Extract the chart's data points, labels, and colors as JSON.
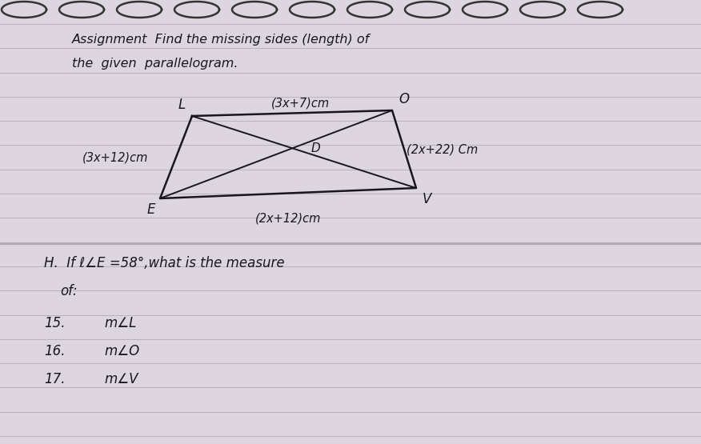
{
  "bg_color": "#ddd5e0",
  "line_color": "#b8b0be",
  "text_color": "#1a1520",
  "title_line1": "Assignment  Find the missing sides (length) of",
  "title_line2": "the  given  parallelogram.",
  "side_labels": {
    "top": "(3x+7)cm",
    "left": "(3x+12)cm",
    "right": "(2x+22) Cm",
    "bottom": "(2x+12)cm"
  },
  "section_H_line1": "H.  If ℓ∠E =58°,what is the measure",
  "section_H_line2": "of:",
  "items": [
    {
      "num": "15.",
      "text": "m∠L"
    },
    {
      "num": "16.",
      "text": "m∠O"
    },
    {
      "num": "17.",
      "text": "m∠V"
    }
  ],
  "spiral_color": "#333333",
  "ruled_line_color": "#b0a8b8",
  "n_ruled_lines": 18,
  "figsize": [
    8.76,
    5.55
  ],
  "dpi": 100
}
